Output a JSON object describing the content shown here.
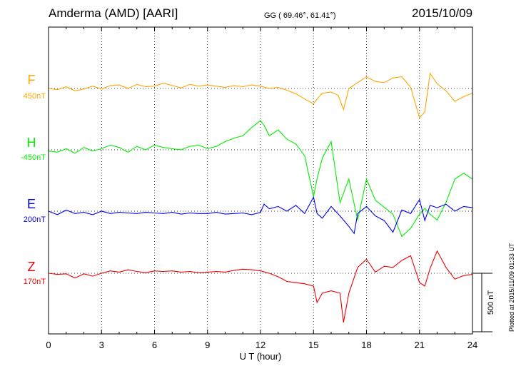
{
  "header": {
    "station": "Amderma (AMD)  [AARI]",
    "coords": "GG ( 69.46°,  61.41°)",
    "date": "2015/10/09"
  },
  "plotted_note": "Plotted at 2015/11/09 01:33 UT",
  "scale_bar_label": "500 nT",
  "chart_data": {
    "type": "line",
    "title": "",
    "xlabel": "U T (hour)",
    "ylabel": "",
    "xlim": [
      0,
      24
    ],
    "xticks": [
      "0",
      "3",
      "6",
      "9",
      "12",
      "15",
      "18",
      "21",
      "24"
    ],
    "grid": true,
    "scale_bar_nT": 500,
    "series": [
      {
        "name": "F",
        "offset_label": "450nT",
        "color": "#ffa500",
        "x": [
          0,
          0.5,
          1,
          1.5,
          2,
          2.5,
          3,
          3.5,
          4,
          4.5,
          5,
          5.5,
          6,
          6.5,
          7,
          7.5,
          8,
          8.5,
          9,
          9.5,
          10,
          10.5,
          11,
          11.5,
          12,
          12.5,
          13,
          13.5,
          14,
          14.5,
          15,
          15.2,
          15.5,
          16,
          16.4,
          16.7,
          17,
          17.5,
          18,
          18.5,
          19,
          19.5,
          20,
          20.5,
          21,
          21.3,
          21.6,
          22,
          22.5,
          23,
          23.5,
          24
        ],
        "values": [
          100,
          90,
          115,
          80,
          95,
          120,
          95,
          125,
          130,
          100,
          135,
          115,
          120,
          145,
          125,
          105,
          135,
          120,
          130,
          120,
          110,
          125,
          115,
          130,
          120,
          100,
          110,
          85,
          55,
          10,
          -30,
          10,
          60,
          70,
          40,
          -80,
          100,
          150,
          200,
          160,
          150,
          190,
          200,
          110,
          -150,
          -100,
          230,
          140,
          80,
          -10,
          30,
          60
        ]
      },
      {
        "name": "H",
        "offset_label": "-450nT",
        "color": "#00ee00",
        "x": [
          0,
          0.5,
          1,
          1.5,
          2,
          2.5,
          3,
          3.5,
          4,
          4.5,
          5,
          5.5,
          6,
          6.5,
          7,
          7.5,
          8,
          8.5,
          9,
          9.5,
          10,
          10.5,
          11,
          11.5,
          12,
          12.2,
          12.5,
          13,
          13.5,
          14,
          14.5,
          15,
          15.2,
          15.5,
          16,
          16.5,
          17,
          17.5,
          18,
          18.5,
          19,
          19.5,
          20,
          20.5,
          21,
          21.3,
          21.6,
          22,
          22.5,
          23,
          23.5,
          24
        ],
        "values": [
          -460,
          -470,
          -440,
          -480,
          -430,
          -460,
          -440,
          -410,
          -430,
          -470,
          -420,
          -450,
          -410,
          -430,
          -440,
          -450,
          -420,
          -410,
          -440,
          -420,
          -380,
          -350,
          -330,
          -260,
          -200,
          -240,
          -330,
          -280,
          -360,
          -400,
          -500,
          -850,
          -700,
          -520,
          -380,
          -900,
          -700,
          -1050,
          -700,
          -880,
          -940,
          -1000,
          -1190,
          -1120,
          -1000,
          -950,
          -1000,
          -1050,
          -900,
          -700,
          -650,
          -700
        ]
      },
      {
        "name": "E",
        "offset_label": "200nT",
        "color": "#0000ee",
        "x": [
          0,
          0.5,
          1,
          1.5,
          2,
          2.5,
          3,
          3.5,
          4,
          4.5,
          5,
          5.5,
          6,
          6.5,
          7,
          7.5,
          8,
          8.5,
          9,
          9.5,
          10,
          10.5,
          11,
          11.5,
          12,
          12.2,
          12.5,
          13,
          13.5,
          14,
          14.5,
          15,
          15.2,
          15.5,
          16,
          16.5,
          17,
          17.3,
          17.5,
          18,
          18.5,
          19,
          19.5,
          20,
          20.5,
          21,
          21.3,
          21.6,
          22,
          22.5,
          23,
          23.5,
          24
        ],
        "values": [
          200,
          170,
          210,
          180,
          190,
          170,
          200,
          180,
          190,
          185,
          180,
          190,
          185,
          180,
          190,
          175,
          185,
          180,
          180,
          190,
          175,
          180,
          185,
          170,
          190,
          260,
          220,
          240,
          200,
          250,
          180,
          320,
          180,
          140,
          240,
          160,
          70,
          10,
          180,
          240,
          160,
          120,
          20,
          210,
          180,
          300,
          120,
          250,
          230,
          260,
          200,
          240,
          230
        ]
      },
      {
        "name": "Z",
        "offset_label": "170nT",
        "color": "#ee0000",
        "x": [
          0,
          0.5,
          1,
          1.5,
          2,
          2.5,
          3,
          3.5,
          4,
          4.5,
          5,
          5.5,
          6,
          6.5,
          7,
          7.5,
          8,
          8.5,
          9,
          9.5,
          10,
          10.5,
          11,
          11.5,
          12,
          12.5,
          13,
          13.5,
          14,
          14.5,
          15,
          15.2,
          15.5,
          16,
          16.5,
          16.7,
          17,
          17.5,
          18,
          18.5,
          19,
          19.5,
          20,
          20.5,
          21,
          21.3,
          21.6,
          22,
          22.5,
          23,
          23.5,
          24
        ],
        "values": [
          170,
          160,
          165,
          130,
          165,
          145,
          170,
          190,
          180,
          200,
          185,
          175,
          190,
          185,
          190,
          180,
          185,
          175,
          180,
          185,
          180,
          195,
          205,
          200,
          190,
          170,
          140,
          100,
          90,
          80,
          60,
          -80,
          0,
          20,
          0,
          -250,
          0,
          220,
          290,
          180,
          230,
          220,
          280,
          320,
          90,
          60,
          210,
          360,
          220,
          120,
          150,
          160
        ]
      }
    ]
  }
}
